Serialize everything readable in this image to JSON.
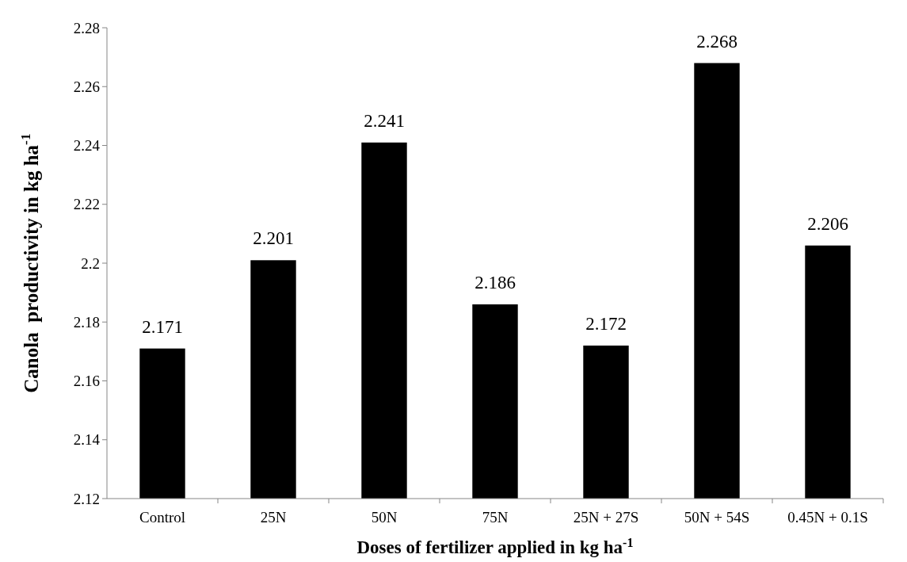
{
  "chart_data": {
    "type": "bar",
    "xlabel": "Doses of fertilizer applied in kg ha$^{-1}$",
    "ylabel": "Canola  productivity in kg ha$^{-1}$",
    "categories": [
      "Control",
      "25N",
      "50N",
      "75N",
      "25N + 27S",
      "50N + 54S",
      "0.45N + 0.1S"
    ],
    "values": [
      2.171,
      2.201,
      2.241,
      2.186,
      2.172,
      2.268,
      2.206
    ],
    "color": "#000000",
    "ylim": [
      2.12,
      2.28
    ],
    "yticks": [
      2.12,
      2.14,
      2.16,
      2.18,
      2.2,
      2.22,
      2.24,
      2.26,
      2.28
    ],
    "data_labels": true
  }
}
